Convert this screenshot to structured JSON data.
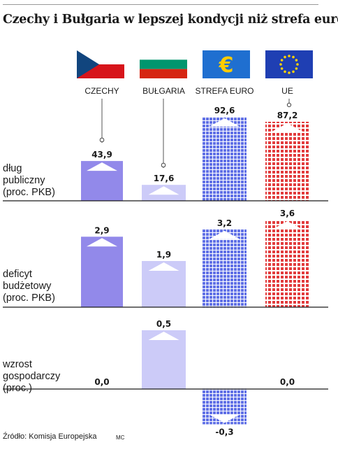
{
  "title": "Czechy i Bułgaria w lepszej kondycji niż strefa euro",
  "source": "Źródło: Komisja Europejska",
  "credit": "MC",
  "colors": {
    "czechy": "#9289ea",
    "bulgaria": "#cccbf8",
    "euro": "#5a6ae8",
    "ue": "#e4393a",
    "axis": "#1a1a1a"
  },
  "icons": [
    "czech-flag-icon",
    "bulgarian-flag-icon",
    "euro-sign-icon",
    "eu-flag-icon"
  ],
  "chart_data": [
    {
      "type": "bar",
      "title": "dług publiczny (proc. PKB)",
      "categories": [
        "CZECHY",
        "BUŁGARIA",
        "STREFA EURO",
        "UE"
      ],
      "values": [
        43.9,
        17.6,
        92.6,
        87.2
      ],
      "value_labels": [
        "43,9",
        "17,6",
        "92,6",
        "87,2"
      ]
    },
    {
      "type": "bar",
      "title": "deficyt budżetowy (proc. PKB)",
      "categories": [
        "CZECHY",
        "BUŁGARIA",
        "STREFA EURO",
        "UE"
      ],
      "values": [
        2.9,
        1.9,
        3.2,
        3.6
      ],
      "value_labels": [
        "2,9",
        "1,9",
        "3,2",
        "3,6"
      ]
    },
    {
      "type": "bar",
      "title": "wzrost gospodarczy (proc.)",
      "categories": [
        "CZECHY",
        "BUŁGARIA",
        "STREFA EURO",
        "UE"
      ],
      "values": [
        0.0,
        0.5,
        -0.3,
        0.0
      ],
      "value_labels": [
        "0,0",
        "0,5",
        "-0,3",
        "0,0"
      ]
    }
  ]
}
